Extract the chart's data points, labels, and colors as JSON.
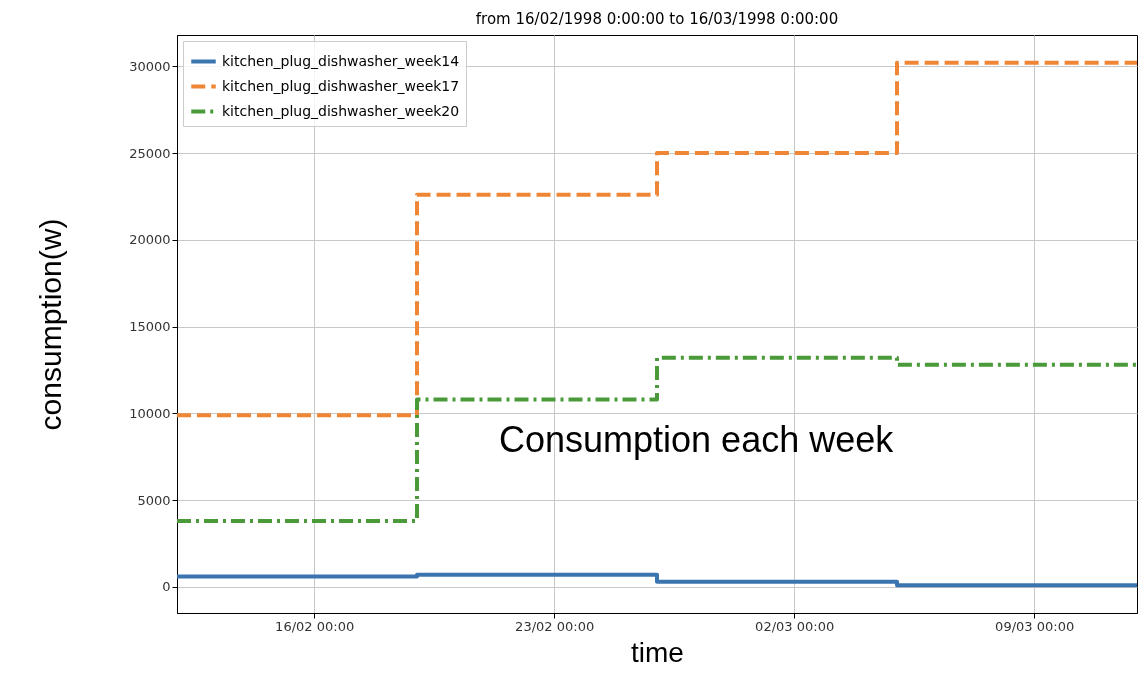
{
  "chart_data": {
    "type": "step",
    "title": "from 16/02/1998 0:00:00 to 16/03/1998 0:00:00",
    "xlabel": "time",
    "ylabel": "consumption(w)",
    "x": [
      "1998-02-12",
      "1998-02-19",
      "1998-02-26",
      "1998-03-05",
      "1998-03-12"
    ],
    "series": [
      {
        "name": "kitchen_plug_dishwasher_week14",
        "color": "#3a75b0",
        "line_style": "solid",
        "values": [
          600,
          700,
          300,
          100,
          100
        ]
      },
      {
        "name": "kitchen_plug_dishwasher_week17",
        "color": "#ef8636",
        "line_style": "dashed",
        "values": [
          9900,
          22600,
          25000,
          30200,
          30200
        ]
      },
      {
        "name": "kitchen_plug_dishwasher_week20",
        "color": "#4a9a3a",
        "line_style": "dashdot",
        "values": [
          3800,
          10800,
          13200,
          12800,
          12800
        ]
      }
    ],
    "xlim": [
      "1998-02-12",
      "1998-03-12"
    ],
    "xticks": [
      {
        "value": "1998-02-16",
        "label": "16/02 00:00"
      },
      {
        "value": "1998-02-23",
        "label": "23/02 00:00"
      },
      {
        "value": "1998-03-02",
        "label": "02/03 00:00"
      },
      {
        "value": "1998-03-09",
        "label": "09/03 00:00"
      }
    ],
    "ylim": [
      -1500,
      31800
    ],
    "yticks": [
      0,
      5000,
      10000,
      15000,
      20000,
      25000,
      30000
    ],
    "grid": true,
    "legend": "top left",
    "annotations": [
      "Consumption each week"
    ]
  }
}
